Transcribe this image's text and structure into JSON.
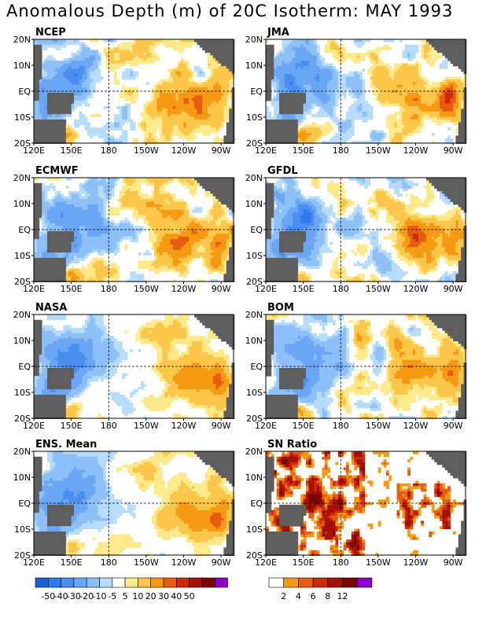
{
  "title": "Anomalous Depth (m) of 20C Isotherm: MAY 1993",
  "x_ticks": [
    "120E",
    "150E",
    "180",
    "150W",
    "120W",
    "90W"
  ],
  "y_ticks": [
    "20N",
    "10N",
    "EQ",
    "10S",
    "20S"
  ],
  "colors": {
    "land": "#5e5e5e",
    "anom_scale": [
      "#1a5fd6",
      "#2f78e8",
      "#4a8ff0",
      "#6aa6f4",
      "#8dc0f7",
      "#b6dcfa",
      "#ffffff",
      "#fde98a",
      "#fcc64a",
      "#f59a12",
      "#e85c12",
      "#cc2a0a",
      "#a31007",
      "#7a0604",
      "#8b00cc"
    ],
    "sn_scale": [
      "#ffffff",
      "#f59a12",
      "#e85c12",
      "#cc2a0a",
      "#a31007",
      "#7a0604",
      "#8b00cc"
    ]
  },
  "chart_data": [
    {
      "type": "heatmap",
      "title": "NCEP",
      "xlim": [
        "120E",
        "80W"
      ],
      "ylim": [
        "20S",
        "20N"
      ]
    },
    {
      "type": "heatmap",
      "title": "JMA",
      "xlim": [
        "120E",
        "80W"
      ],
      "ylim": [
        "20S",
        "20N"
      ]
    },
    {
      "type": "heatmap",
      "title": "ECMWF",
      "xlim": [
        "120E",
        "80W"
      ],
      "ylim": [
        "20S",
        "20N"
      ]
    },
    {
      "type": "heatmap",
      "title": "GFDL",
      "xlim": [
        "120E",
        "80W"
      ],
      "ylim": [
        "20S",
        "20N"
      ]
    },
    {
      "type": "heatmap",
      "title": "NASA",
      "xlim": [
        "120E",
        "80W"
      ],
      "ylim": [
        "20S",
        "20N"
      ]
    },
    {
      "type": "heatmap",
      "title": "BOM",
      "xlim": [
        "120E",
        "80W"
      ],
      "ylim": [
        "20S",
        "20N"
      ]
    },
    {
      "type": "heatmap",
      "title": "ENS. Mean",
      "xlim": [
        "120E",
        "80W"
      ],
      "ylim": [
        "20S",
        "20N"
      ]
    },
    {
      "type": "heatmap",
      "title": "SN Ratio",
      "xlim": [
        "120E",
        "80W"
      ],
      "ylim": [
        "20S",
        "20N"
      ]
    }
  ],
  "legend_anomaly": {
    "tick_labels": [
      "-50",
      "-40",
      "-30",
      "-20",
      "-10",
      "-5",
      "5",
      "10",
      "20",
      "30",
      "40",
      "50"
    ]
  },
  "legend_sn": {
    "tick_labels": [
      "2",
      "4",
      "6",
      "8",
      "12"
    ]
  }
}
